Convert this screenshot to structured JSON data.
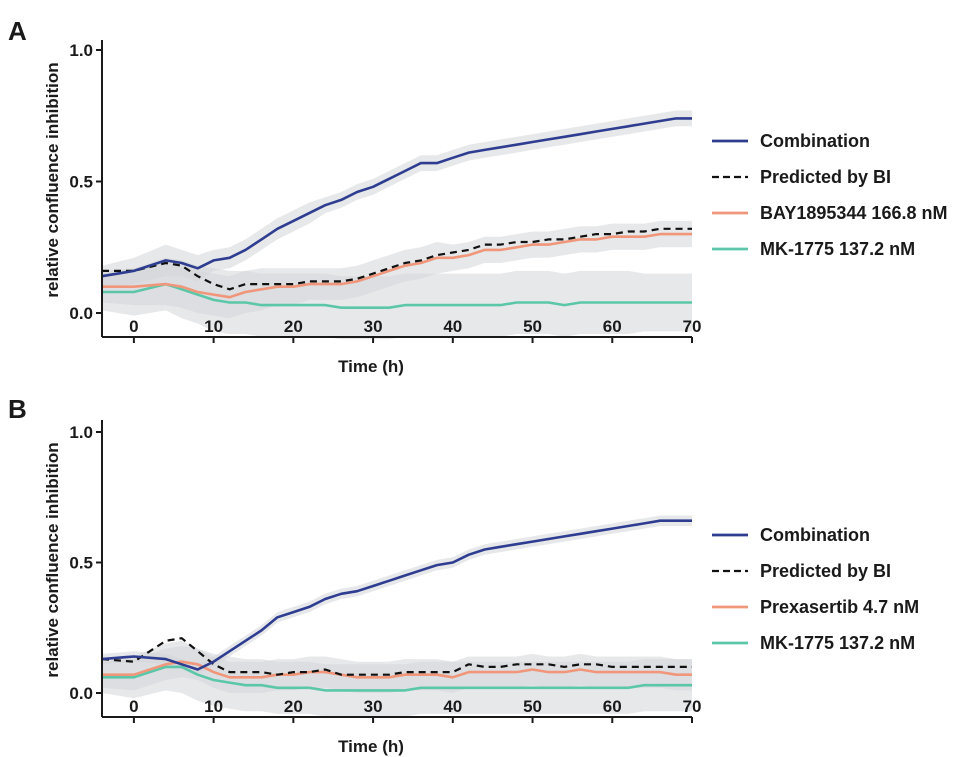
{
  "colors": {
    "combination": "#2f3d91",
    "predicted": "#111111",
    "drug_a": "#f0967a",
    "drug_b": "#5cc7a8",
    "band": "#d4d6d9"
  },
  "chart_data": [
    {
      "panel": "A",
      "type": "line",
      "xlabel": "Time (h)",
      "ylabel": "relative confluence inhibition",
      "xlim": [
        -4,
        70
      ],
      "ylim": [
        0,
        1
      ],
      "x_ticks": [
        "0",
        "10",
        "20",
        "30",
        "40",
        "50",
        "60",
        "70"
      ],
      "y_ticks": [
        "0.0",
        "0.5",
        "1.0"
      ],
      "grid": false,
      "legend_position": "right",
      "series": [
        {
          "name": "Combination",
          "key": "combination",
          "dash": false,
          "x": [
            -4,
            0,
            4,
            6,
            8,
            10,
            12,
            14,
            16,
            18,
            20,
            22,
            24,
            26,
            28,
            30,
            32,
            34,
            36,
            38,
            40,
            42,
            44,
            46,
            48,
            50,
            52,
            54,
            56,
            58,
            60,
            62,
            64,
            66,
            68,
            70
          ],
          "y": [
            0.14,
            0.16,
            0.2,
            0.19,
            0.17,
            0.2,
            0.21,
            0.24,
            0.28,
            0.32,
            0.35,
            0.38,
            0.41,
            0.43,
            0.46,
            0.48,
            0.51,
            0.54,
            0.57,
            0.57,
            0.59,
            0.61,
            0.62,
            0.63,
            0.64,
            0.65,
            0.66,
            0.67,
            0.68,
            0.69,
            0.7,
            0.71,
            0.72,
            0.73,
            0.74,
            0.74
          ],
          "band": [
            0.04,
            0.05,
            0.06,
            0.05,
            0.05,
            0.04,
            0.04,
            0.04,
            0.04,
            0.04,
            0.04,
            0.04,
            0.03,
            0.03,
            0.03,
            0.03,
            0.03,
            0.03,
            0.03,
            0.03,
            0.03,
            0.03,
            0.03,
            0.03,
            0.03,
            0.03,
            0.03,
            0.03,
            0.03,
            0.03,
            0.03,
            0.03,
            0.03,
            0.03,
            0.03,
            0.03
          ]
        },
        {
          "name": "Predicted by BI",
          "key": "predicted",
          "dash": true,
          "x": [
            -4,
            0,
            4,
            6,
            8,
            10,
            12,
            14,
            16,
            18,
            20,
            22,
            24,
            26,
            28,
            30,
            32,
            34,
            36,
            38,
            40,
            42,
            44,
            46,
            48,
            50,
            52,
            54,
            56,
            58,
            60,
            62,
            64,
            66,
            68,
            70
          ],
          "y": [
            0.16,
            0.16,
            0.19,
            0.18,
            0.14,
            0.11,
            0.09,
            0.11,
            0.11,
            0.11,
            0.11,
            0.12,
            0.12,
            0.12,
            0.13,
            0.15,
            0.17,
            0.19,
            0.2,
            0.22,
            0.23,
            0.24,
            0.26,
            0.26,
            0.27,
            0.27,
            0.28,
            0.28,
            0.29,
            0.3,
            0.3,
            0.31,
            0.31,
            0.32,
            0.32,
            0.32
          ],
          "band": []
        },
        {
          "name": "BAY1895344 166.8 nM",
          "key": "drug_a",
          "dash": false,
          "x": [
            -4,
            0,
            4,
            6,
            8,
            10,
            12,
            14,
            16,
            18,
            20,
            22,
            24,
            26,
            28,
            30,
            32,
            34,
            36,
            38,
            40,
            42,
            44,
            46,
            48,
            50,
            52,
            54,
            56,
            58,
            60,
            62,
            64,
            66,
            68,
            70
          ],
          "y": [
            0.1,
            0.1,
            0.11,
            0.1,
            0.08,
            0.07,
            0.06,
            0.08,
            0.09,
            0.1,
            0.1,
            0.11,
            0.11,
            0.11,
            0.12,
            0.14,
            0.16,
            0.18,
            0.19,
            0.21,
            0.21,
            0.22,
            0.24,
            0.24,
            0.25,
            0.26,
            0.26,
            0.27,
            0.28,
            0.28,
            0.29,
            0.29,
            0.29,
            0.3,
            0.3,
            0.3
          ],
          "band": [
            0.06,
            0.07,
            0.08,
            0.08,
            0.08,
            0.08,
            0.08,
            0.08,
            0.08,
            0.07,
            0.07,
            0.06,
            0.06,
            0.06,
            0.06,
            0.06,
            0.06,
            0.06,
            0.06,
            0.06,
            0.05,
            0.05,
            0.05,
            0.05,
            0.05,
            0.05,
            0.05,
            0.05,
            0.05,
            0.05,
            0.05,
            0.05,
            0.05,
            0.05,
            0.05,
            0.05
          ]
        },
        {
          "name": "MK-1775 137.2 nM",
          "key": "drug_b",
          "dash": false,
          "x": [
            -4,
            0,
            4,
            6,
            8,
            10,
            12,
            14,
            16,
            18,
            20,
            22,
            24,
            26,
            28,
            30,
            32,
            34,
            36,
            38,
            40,
            42,
            44,
            46,
            48,
            50,
            52,
            54,
            56,
            58,
            60,
            62,
            64,
            66,
            68,
            70
          ],
          "y": [
            0.08,
            0.08,
            0.11,
            0.09,
            0.07,
            0.05,
            0.04,
            0.04,
            0.03,
            0.03,
            0.03,
            0.03,
            0.03,
            0.02,
            0.02,
            0.02,
            0.02,
            0.03,
            0.03,
            0.03,
            0.03,
            0.03,
            0.03,
            0.03,
            0.04,
            0.04,
            0.04,
            0.03,
            0.04,
            0.04,
            0.04,
            0.04,
            0.04,
            0.04,
            0.04,
            0.04
          ],
          "band": [
            0.07,
            0.09,
            0.1,
            0.11,
            0.11,
            0.12,
            0.12,
            0.12,
            0.12,
            0.12,
            0.12,
            0.12,
            0.12,
            0.12,
            0.12,
            0.12,
            0.12,
            0.12,
            0.12,
            0.12,
            0.12,
            0.12,
            0.12,
            0.12,
            0.12,
            0.12,
            0.12,
            0.12,
            0.12,
            0.12,
            0.12,
            0.12,
            0.11,
            0.11,
            0.11,
            0.11
          ]
        }
      ]
    },
    {
      "panel": "B",
      "type": "line",
      "xlabel": "Time (h)",
      "ylabel": "relative confluence inhibition",
      "xlim": [
        -4,
        70
      ],
      "ylim": [
        0,
        1
      ],
      "x_ticks": [
        "0",
        "10",
        "20",
        "30",
        "40",
        "50",
        "60",
        "70"
      ],
      "y_ticks": [
        "0.0",
        "0.5",
        "1.0"
      ],
      "grid": false,
      "legend_position": "right",
      "series": [
        {
          "name": "Combination",
          "key": "combination",
          "dash": false,
          "x": [
            -4,
            0,
            4,
            6,
            8,
            10,
            12,
            14,
            16,
            18,
            20,
            22,
            24,
            26,
            28,
            30,
            32,
            34,
            36,
            38,
            40,
            42,
            44,
            46,
            48,
            50,
            52,
            54,
            56,
            58,
            60,
            62,
            64,
            66,
            68,
            70
          ],
          "y": [
            0.13,
            0.14,
            0.13,
            0.11,
            0.09,
            0.12,
            0.16,
            0.2,
            0.24,
            0.29,
            0.31,
            0.33,
            0.36,
            0.38,
            0.39,
            0.41,
            0.43,
            0.45,
            0.47,
            0.49,
            0.5,
            0.53,
            0.55,
            0.56,
            0.57,
            0.58,
            0.59,
            0.6,
            0.61,
            0.62,
            0.63,
            0.64,
            0.65,
            0.66,
            0.66,
            0.66
          ],
          "band": [
            0.02,
            0.02,
            0.02,
            0.02,
            0.02,
            0.02,
            0.02,
            0.02,
            0.02,
            0.02,
            0.02,
            0.02,
            0.02,
            0.02,
            0.02,
            0.02,
            0.02,
            0.02,
            0.02,
            0.02,
            0.02,
            0.02,
            0.02,
            0.02,
            0.02,
            0.02,
            0.02,
            0.02,
            0.02,
            0.02,
            0.02,
            0.02,
            0.02,
            0.02,
            0.02,
            0.02
          ]
        },
        {
          "name": "Predicted by BI",
          "key": "predicted",
          "dash": true,
          "x": [
            -4,
            0,
            4,
            6,
            8,
            10,
            12,
            14,
            16,
            18,
            20,
            22,
            24,
            26,
            28,
            30,
            32,
            34,
            36,
            38,
            40,
            42,
            44,
            46,
            48,
            50,
            52,
            54,
            56,
            58,
            60,
            62,
            64,
            66,
            68,
            70
          ],
          "y": [
            0.13,
            0.12,
            0.2,
            0.21,
            0.16,
            0.11,
            0.08,
            0.08,
            0.08,
            0.07,
            0.08,
            0.08,
            0.09,
            0.07,
            0.07,
            0.07,
            0.07,
            0.08,
            0.08,
            0.08,
            0.08,
            0.11,
            0.1,
            0.1,
            0.11,
            0.11,
            0.11,
            0.1,
            0.11,
            0.11,
            0.1,
            0.1,
            0.1,
            0.1,
            0.1,
            0.1
          ],
          "band": []
        },
        {
          "name": "Prexasertib 4.7 nM",
          "key": "drug_a",
          "dash": false,
          "x": [
            -4,
            0,
            4,
            6,
            8,
            10,
            12,
            14,
            16,
            18,
            20,
            22,
            24,
            26,
            28,
            30,
            32,
            34,
            36,
            38,
            40,
            42,
            44,
            46,
            48,
            50,
            52,
            54,
            56,
            58,
            60,
            62,
            64,
            66,
            68,
            70
          ],
          "y": [
            0.07,
            0.07,
            0.11,
            0.12,
            0.11,
            0.08,
            0.06,
            0.06,
            0.06,
            0.07,
            0.07,
            0.08,
            0.08,
            0.07,
            0.06,
            0.06,
            0.06,
            0.07,
            0.07,
            0.07,
            0.06,
            0.08,
            0.08,
            0.08,
            0.08,
            0.09,
            0.08,
            0.08,
            0.09,
            0.08,
            0.08,
            0.08,
            0.08,
            0.08,
            0.07,
            0.07
          ],
          "band": [
            0.05,
            0.06,
            0.06,
            0.06,
            0.06,
            0.06,
            0.06,
            0.06,
            0.06,
            0.06,
            0.06,
            0.06,
            0.06,
            0.06,
            0.06,
            0.06,
            0.06,
            0.06,
            0.06,
            0.06,
            0.06,
            0.06,
            0.06,
            0.06,
            0.06,
            0.06,
            0.06,
            0.06,
            0.06,
            0.06,
            0.06,
            0.06,
            0.06,
            0.06,
            0.06,
            0.06
          ]
        },
        {
          "name": "MK-1775 137.2 nM",
          "key": "drug_b",
          "dash": false,
          "x": [
            -4,
            0,
            4,
            6,
            8,
            10,
            12,
            14,
            16,
            18,
            20,
            22,
            24,
            26,
            28,
            30,
            32,
            34,
            36,
            38,
            40,
            42,
            44,
            46,
            48,
            50,
            52,
            54,
            56,
            58,
            60,
            62,
            64,
            66,
            68,
            70
          ],
          "y": [
            0.06,
            0.06,
            0.1,
            0.1,
            0.07,
            0.05,
            0.04,
            0.03,
            0.03,
            0.02,
            0.02,
            0.02,
            0.01,
            0.01,
            0.01,
            0.01,
            0.01,
            0.01,
            0.02,
            0.02,
            0.02,
            0.02,
            0.02,
            0.02,
            0.02,
            0.02,
            0.02,
            0.02,
            0.02,
            0.02,
            0.02,
            0.02,
            0.03,
            0.03,
            0.03,
            0.03
          ],
          "band": [
            0.06,
            0.08,
            0.09,
            0.1,
            0.1,
            0.1,
            0.1,
            0.1,
            0.1,
            0.1,
            0.1,
            0.1,
            0.1,
            0.1,
            0.1,
            0.1,
            0.1,
            0.1,
            0.1,
            0.1,
            0.1,
            0.1,
            0.1,
            0.1,
            0.1,
            0.1,
            0.1,
            0.1,
            0.1,
            0.1,
            0.1,
            0.1,
            0.1,
            0.1,
            0.1,
            0.1
          ]
        }
      ]
    }
  ]
}
